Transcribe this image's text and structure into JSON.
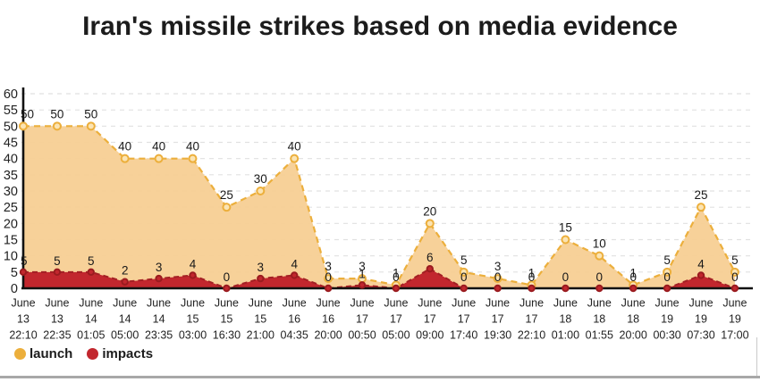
{
  "title": "Iran's missile strikes based on media evidence",
  "legend": {
    "launch_label": "launch",
    "impacts_label": "impacts"
  },
  "colors": {
    "background": "#ffffff",
    "title_text": "#1c1c1c",
    "grid_line": "#e1e1e1",
    "axis_line": "#111111",
    "tick_text": "#222222",
    "data_label_text": "#1a1a1a",
    "launch_line": "#ecaf3c",
    "launch_fill": "#f7cf94",
    "launch_point_fill": "#fbe4b3",
    "impacts_line": "#a32024",
    "impacts_fill": "#c2272e",
    "impacts_point_stroke": "#9a1b1f",
    "bottom_divider": "#a8a8a8"
  },
  "chart_data": {
    "type": "area",
    "title": "Iran's missile strikes based on media evidence",
    "xlabel": "",
    "ylabel": "",
    "ylim": [
      0,
      60
    ],
    "ytick_step": 5,
    "grid": "horizontal-dashed",
    "legend_position": "bottom-left",
    "categories": [
      [
        "June",
        "13",
        "22:10"
      ],
      [
        "June",
        "13",
        "22:35"
      ],
      [
        "June",
        "14",
        "01:05"
      ],
      [
        "June",
        "14",
        "05:00"
      ],
      [
        "June",
        "14",
        "23:35"
      ],
      [
        "June",
        "15",
        "03:00"
      ],
      [
        "June",
        "15",
        "16:30"
      ],
      [
        "June",
        "15",
        "21:00"
      ],
      [
        "June",
        "16",
        "04:35"
      ],
      [
        "June",
        "16",
        "20:00"
      ],
      [
        "June",
        "17",
        "00:50"
      ],
      [
        "June",
        "17",
        "05:00"
      ],
      [
        "June",
        "17",
        "09:00"
      ],
      [
        "June",
        "17",
        "17:40"
      ],
      [
        "June",
        "17",
        "19:30"
      ],
      [
        "June",
        "17",
        "22:10"
      ],
      [
        "June",
        "18",
        "01:00"
      ],
      [
        "June",
        "18",
        "01:55"
      ],
      [
        "June",
        "18",
        "20:00"
      ],
      [
        "June",
        "19",
        "00:30"
      ],
      [
        "June",
        "19",
        "07:30"
      ],
      [
        "June",
        "19",
        "17:00"
      ]
    ],
    "series": [
      {
        "name": "launch",
        "values": [
          50,
          50,
          50,
          40,
          40,
          40,
          25,
          30,
          40,
          3,
          3,
          1,
          20,
          5,
          3,
          1,
          15,
          10,
          1,
          5,
          25,
          5
        ],
        "line_color": "#ecaf3c",
        "fill_color": "#f7cf94",
        "point_fill": "#fbe4b3",
        "line_style": "dashed"
      },
      {
        "name": "impacts",
        "values": [
          5,
          5,
          5,
          2,
          3,
          4,
          0,
          3,
          4,
          0,
          1,
          0,
          6,
          0,
          0,
          0,
          0,
          0,
          0,
          0,
          4,
          0
        ],
        "line_color": "#a32024",
        "fill_color": "#c2272e",
        "point_fill": "#c2272e",
        "line_style": "dashed"
      }
    ]
  }
}
